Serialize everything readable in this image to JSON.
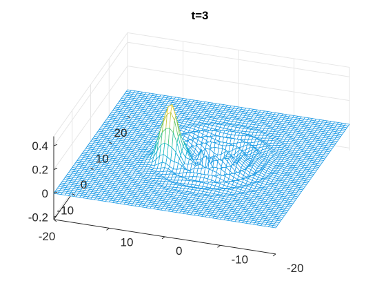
{
  "chart_data": {
    "type": "surface",
    "title": "t=3",
    "xlabel": "",
    "ylabel": "",
    "zlabel": "",
    "grid": true,
    "colormap": "parula",
    "mesh_color": "#1e9be6",
    "peak_color": "#f9d11f",
    "x_axis": {
      "range": [
        -20,
        20
      ],
      "ticks": [
        20,
        10,
        0,
        -10,
        -20
      ],
      "tick_labels": [
        "20",
        "10",
        "0",
        "-10",
        "-20"
      ]
    },
    "y_axis": {
      "range": [
        -20,
        20
      ],
      "ticks": [
        10,
        0,
        -10,
        -20
      ],
      "tick_labels": [
        "10",
        "0",
        "-10",
        "-20"
      ]
    },
    "z_axis": {
      "range": [
        -0.22,
        0.48
      ],
      "ticks": [
        0.4,
        0.2,
        0,
        -0.2
      ],
      "tick_labels": [
        "0.4",
        "0.2",
        "0",
        "-0.2"
      ]
    },
    "surface": {
      "baseline": 0,
      "peak": {
        "x": -2,
        "y": 5,
        "z": 0.46,
        "width": 1.5
      },
      "ripples": {
        "center_x": 1,
        "center_y": -2,
        "amplitude": 0.035,
        "wavelength": 2.4,
        "radius": 9
      }
    }
  }
}
